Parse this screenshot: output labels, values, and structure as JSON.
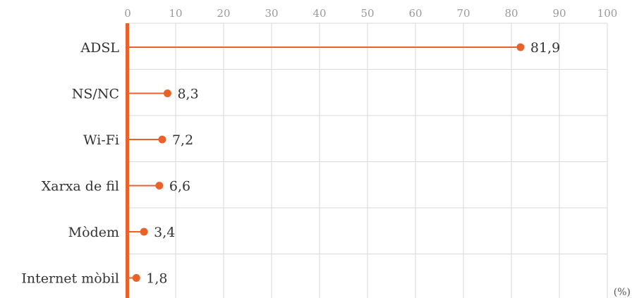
{
  "chart_data": {
    "type": "lollipop",
    "orientation": "horizontal",
    "categories": [
      "ADSL",
      "NS/NC",
      "Wi-Fi",
      "Xarxa de fil",
      "Mòdem",
      "Internet mòbil"
    ],
    "values": [
      81.9,
      8.3,
      7.2,
      6.6,
      3.4,
      1.8
    ],
    "value_labels": [
      "81,9",
      "8,3",
      "7,2",
      "6,6",
      "3,4",
      "1,8"
    ],
    "x_ticks": [
      0,
      10,
      20,
      30,
      40,
      50,
      60,
      70,
      80,
      90,
      100
    ],
    "xlim": [
      0,
      100
    ],
    "axis_position": "top",
    "unit_label": "(%)",
    "grid": true,
    "colors": {
      "series": "#e8622a",
      "grid": "#d9d9d9",
      "text": "#333333",
      "tick": "#9a9a9a"
    }
  }
}
